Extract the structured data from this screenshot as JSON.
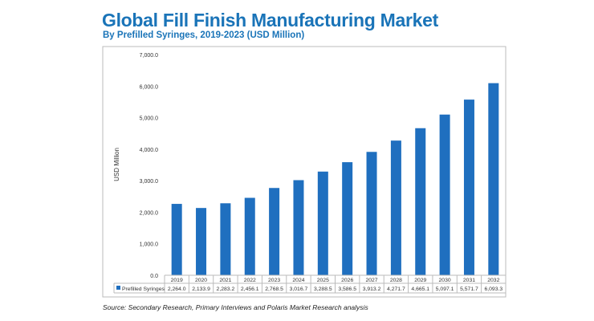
{
  "chart_data": {
    "type": "bar",
    "title": "Global Fill Finish Manufacturing Market",
    "subtitle": "By Prefilled Syringes, 2019-2023 (USD Million)",
    "xlabel": "",
    "ylabel": "USD Million",
    "ylim": [
      0,
      7000
    ],
    "yticks": [
      "0.0",
      "1,000.0",
      "2,000.0",
      "3,000.0",
      "4,000.0",
      "5,000.0",
      "6,000.0",
      "7,000.0"
    ],
    "categories": [
      "2019",
      "2020",
      "2021",
      "2022",
      "2023",
      "2024",
      "2025",
      "2026",
      "2027",
      "2028",
      "2029",
      "2030",
      "2031",
      "2032"
    ],
    "series": [
      {
        "name": "Prefilled Syringes",
        "color": "#1f6fbf",
        "values": [
          2264.0,
          2133.9,
          2283.2,
          2456.1,
          2768.5,
          3016.7,
          3288.5,
          3586.5,
          3913.2,
          4271.7,
          4665.1,
          5097.1,
          5571.7,
          6093.3
        ],
        "labels": [
          "2,264.0",
          "2,133.9",
          "2,283.2",
          "2,456.1",
          "2,768.5",
          "3,016.7",
          "3,288.5",
          "3,586.5",
          "3,913.2",
          "4,271.7",
          "4,665.1",
          "5,097.1",
          "5,571.7",
          "6,093.3"
        ]
      }
    ],
    "grid": false,
    "legend": "data-table-bottom"
  },
  "source": "Source: Secondary Research, Primary Interviews and Polaris Market Research analysis"
}
